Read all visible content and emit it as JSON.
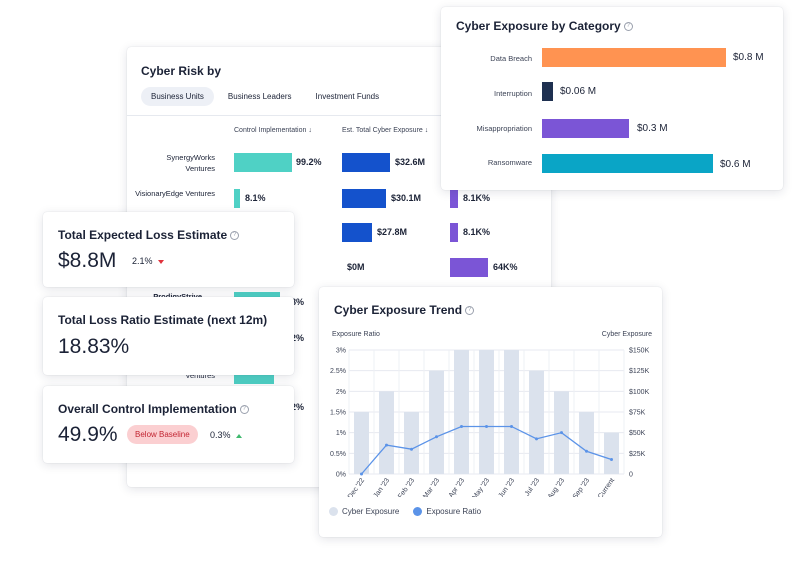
{
  "risk_table": {
    "title": "Cyber Risk by",
    "tabs": [
      {
        "label": "Business Units",
        "active": true
      },
      {
        "label": "Business Leaders",
        "active": false
      },
      {
        "label": "Investment Funds",
        "active": false
      }
    ],
    "columns": [
      "Control Implementation",
      "Est. Total Cyber Exposure"
    ],
    "rows": [
      {
        "name": "SynergyWorks Ventures",
        "control": "99.2%",
        "control_frac": 0.992,
        "exposure": "$32.6M",
        "exposure_m": 32.6
      },
      {
        "name": "VisionaryEdge Ventures",
        "control": "8.1%",
        "control_frac": 0.081,
        "exposure": "$30.1M",
        "exposure_m": 30.1,
        "third": "8.1K%"
      },
      {
        "name": "",
        "control": "",
        "exposure": "$27.8M",
        "exposure_m": 27.8,
        "third": "8.1K%"
      },
      {
        "name": "",
        "control": "",
        "exposure": "$0M",
        "exposure_m": 0,
        "third": "64K%"
      },
      {
        "name": "ProdigyStrive",
        "control": "8%"
      },
      {
        "name": "",
        "control": "2%"
      },
      {
        "name": "Ventures",
        "control": "2%"
      }
    ]
  },
  "category": {
    "title": "Cyber Exposure by Category",
    "items": [
      {
        "label": "Data Breach",
        "value": "$0.8 M",
        "amount_m": 0.8,
        "color": "#ff9351"
      },
      {
        "label": "Interruption",
        "value": "$0.06 M",
        "amount_m": 0.06,
        "color": "#1e3050"
      },
      {
        "label": "Misappropriation",
        "value": "$0.3 M",
        "amount_m": 0.3,
        "color": "#7b55d6"
      },
      {
        "label": "Ransomware",
        "value": "$0.6 M",
        "amount_m": 0.6,
        "color": "#0aa5c6"
      }
    ]
  },
  "kpis": {
    "total_loss": {
      "title": "Total Expected Loss Estimate",
      "value": "$8.8M",
      "change": "2.1%"
    },
    "loss_ratio": {
      "title": "Total Loss Ratio Estimate (next 12m)",
      "value": "18.83%"
    },
    "control": {
      "title": "Overall Control Implementation",
      "value": "49.9%",
      "badge": "Below Baseline",
      "change": "0.3%"
    }
  },
  "trend": {
    "title": "Cyber Exposure Trend",
    "left_axis_title": "Exposure Ratio",
    "right_axis_title": "Cyber Exposure",
    "legend": {
      "exposure": "Cyber Exposure",
      "ratio": "Exposure Ratio"
    },
    "colors": {
      "bars": "#dbe2ed",
      "line": "#5b93e8"
    }
  },
  "chart_data": {
    "type": "bar",
    "title": "Cyber Exposure Trend",
    "categories": [
      "Dec '22",
      "Jan '23",
      "Feb '23",
      "Mar '23",
      "Apr '23",
      "May '23",
      "Jun '23",
      "Jul '23",
      "Aug '23",
      "Sep '23",
      "Current"
    ],
    "series": [
      {
        "name": "Cyber Exposure",
        "type": "bar",
        "axis": "right",
        "values": [
          75000,
          100000,
          75000,
          125000,
          150000,
          150000,
          150000,
          125000,
          100000,
          75000,
          50000
        ]
      },
      {
        "name": "Exposure Ratio",
        "type": "line",
        "axis": "left",
        "values": [
          0,
          0.7,
          0.6,
          0.9,
          1.15,
          1.15,
          1.15,
          0.85,
          1.0,
          0.55,
          0.35
        ]
      }
    ],
    "left_ticks": [
      "0%",
      "0.5%",
      "1%",
      "1.5%",
      "2%",
      "2.5%",
      "3%"
    ],
    "right_ticks": [
      "0",
      "$25K",
      "$50K",
      "$75K",
      "$100K",
      "$125K",
      "$150K"
    ],
    "left_ylim": [
      0,
      3
    ],
    "right_ylim": [
      0,
      150000
    ],
    "ylabel_left": "Exposure Ratio",
    "ylabel_right": "Cyber Exposure",
    "grid": true,
    "legend": "bottom-left"
  }
}
